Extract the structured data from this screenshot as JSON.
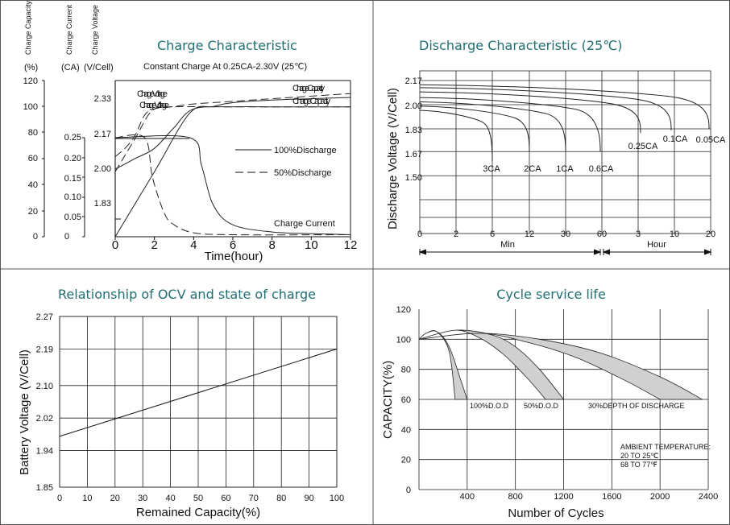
{
  "chart_data": [
    {
      "type": "line",
      "title": "Charge Characteristic",
      "subtitle": "Constant Charge At 0.25CA-2.30V  (25℃)",
      "axis_headers": [
        "Charge Capacity",
        "Charge Current",
        "Charge Voltage"
      ],
      "axis_units": [
        "(%)",
        "(CA)",
        "(V/Cell)"
      ],
      "xlabel": "Time(hour)",
      "x_ticks": [
        "0",
        "2",
        "4",
        "6",
        "8",
        "10",
        "12"
      ],
      "xlim": [
        0,
        12
      ],
      "capacity_ticks": [
        "120",
        "100",
        "80",
        "60",
        "40",
        "20",
        "0"
      ],
      "current_ticks": [
        "0.25",
        "0.20",
        "0.15",
        "0.10",
        "0.05",
        "0"
      ],
      "voltage_ticks": [
        "2.33",
        "2.17",
        "2.00",
        "1.83"
      ],
      "legend": [
        "100%Discharge",
        "50%Discharge"
      ],
      "annotations": [
        "Charge Voltage",
        "Charge Capacity",
        "Charge Current"
      ],
      "series": [
        {
          "curve": "Charge Voltage",
          "line": "100%Discharge",
          "axis": "voltage",
          "x": [
            0,
            1,
            2,
            3,
            4,
            6,
            8,
            10,
            12
          ],
          "y": [
            2.0,
            2.05,
            2.1,
            2.2,
            2.29,
            2.3,
            2.3,
            2.3,
            2.3
          ]
        },
        {
          "curve": "Charge Voltage",
          "line": "50%Discharge",
          "axis": "voltage",
          "x": [
            0,
            0.5,
            1,
            1.5,
            2,
            3,
            6,
            12
          ],
          "y": [
            2.06,
            2.1,
            2.16,
            2.26,
            2.29,
            2.3,
            2.3,
            2.3
          ]
        },
        {
          "curve": "Charge Capacity",
          "line": "100%Discharge",
          "axis": "capacity",
          "x": [
            0,
            2,
            3.8,
            5,
            6,
            8,
            10,
            12
          ],
          "y": [
            0,
            50,
            95,
            100,
            103,
            105,
            106,
            107
          ]
        },
        {
          "curve": "Charge Capacity",
          "line": "50%Discharge",
          "axis": "capacity",
          "x": [
            0,
            1,
            1.9,
            3,
            4,
            6,
            8,
            12
          ],
          "y": [
            50,
            75,
            97,
            100,
            102,
            104,
            106,
            110
          ]
        },
        {
          "curve": "Charge Current",
          "line": "100%Discharge",
          "axis": "current",
          "x": [
            0,
            3.8,
            4.4,
            5,
            6,
            8,
            10,
            12
          ],
          "y": [
            0.25,
            0.25,
            0.18,
            0.08,
            0.03,
            0.012,
            0.008,
            0.005
          ]
        },
        {
          "curve": "Charge Current",
          "line": "50%Discharge",
          "axis": "current",
          "x": [
            0,
            1.5,
            1.9,
            2.5,
            3,
            4,
            6,
            12
          ],
          "y": [
            0.25,
            0.25,
            0.15,
            0.06,
            0.03,
            0.01,
            0.005,
            0.005
          ]
        }
      ]
    },
    {
      "type": "line",
      "title": "Discharge Characteristic  (25℃)",
      "ylabel": "Discharge Voltage (V/Cell)",
      "y_ticks": [
        "2.17",
        "2.00",
        "1.83",
        "1.67",
        "1.50"
      ],
      "x_ticks": [
        "0",
        "2",
        "6",
        "12",
        "30",
        "60",
        "3",
        "10",
        "20"
      ],
      "x_units": [
        "Min",
        "Hour"
      ],
      "series": [
        {
          "name": "3CA",
          "end_minutes": 6,
          "start_v": 1.96,
          "end_v": 1.6
        },
        {
          "name": "2CA",
          "end_minutes": 12,
          "start_v": 1.99,
          "end_v": 1.67
        },
        {
          "name": "1CA",
          "end_minutes": 30,
          "start_v": 2.02,
          "end_v": 1.67
        },
        {
          "name": "0.6CA",
          "end_minutes": 60,
          "start_v": 2.05,
          "end_v": 1.67
        },
        {
          "name": "0.25CA",
          "end_hours": 3,
          "start_v": 2.09,
          "end_v": 1.8
        },
        {
          "name": "0.1CA",
          "end_hours": 10,
          "start_v": 2.12,
          "end_v": 1.82
        },
        {
          "name": "0.05CA",
          "end_hours": 20,
          "start_v": 2.14,
          "end_v": 1.83
        }
      ]
    },
    {
      "type": "line",
      "title": "Relationship of OCV and state of charge",
      "xlabel": "Remained Capacity(%)",
      "ylabel": "Battery Voltage (V/Cell)",
      "x_ticks": [
        "0",
        "10",
        "20",
        "30",
        "40",
        "50",
        "60",
        "70",
        "80",
        "90",
        "100"
      ],
      "y_ticks": [
        "2.27",
        "2.19",
        "2.10",
        "2.02",
        "1.94",
        "1.85"
      ],
      "xlim": [
        0,
        100
      ],
      "ylim": [
        1.85,
        2.27
      ],
      "x": [
        0,
        100
      ],
      "y": [
        1.975,
        2.19
      ]
    },
    {
      "type": "area",
      "title": "Cycle service life",
      "xlabel": "Number of Cycles",
      "ylabel": "CAPACITY(%)",
      "x_ticks": [
        "400",
        "800",
        "1200",
        "1600",
        "2000",
        "2400"
      ],
      "y_ticks": [
        "120",
        "100",
        "80",
        "60",
        "40",
        "20",
        "0"
      ],
      "xlim": [
        0,
        2400
      ],
      "ylim": [
        0,
        120
      ],
      "note": [
        "AMBIENT TEMPERATURE:",
        "20 TO 25℃",
        "68 TO 77℉"
      ],
      "series": [
        {
          "name": "100%D.O.D",
          "upper": {
            "x": [
              0,
              60,
              150,
              250,
              350,
              400
            ],
            "y": [
              100,
              104,
              105,
              95,
              72,
              60
            ]
          },
          "lower": {
            "x": [
              0,
              60,
              150,
              250,
              300
            ],
            "y": [
              100,
              104,
              105,
              92,
              60
            ]
          }
        },
        {
          "name": "50%D.O.D",
          "upper": {
            "x": [
              0,
              300,
              600,
              800,
              1000,
              1200
            ],
            "y": [
              100,
              106,
              103,
              95,
              80,
              60
            ]
          },
          "lower": {
            "x": [
              0,
              300,
              500,
              700,
              900,
              1050
            ],
            "y": [
              100,
              106,
              101,
              90,
              74,
              60
            ]
          }
        },
        {
          "name": "30%DEPTH OF DISCHARGE",
          "upper": {
            "x": [
              0,
              500,
              1000,
              1500,
              2000,
              2350
            ],
            "y": [
              100,
              104,
              100,
              91,
              75,
              60
            ]
          },
          "lower": {
            "x": [
              0,
              500,
              900,
              1300,
              1700,
              2000
            ],
            "y": [
              100,
              104,
              98,
              88,
              73,
              60
            ]
          }
        }
      ]
    }
  ]
}
